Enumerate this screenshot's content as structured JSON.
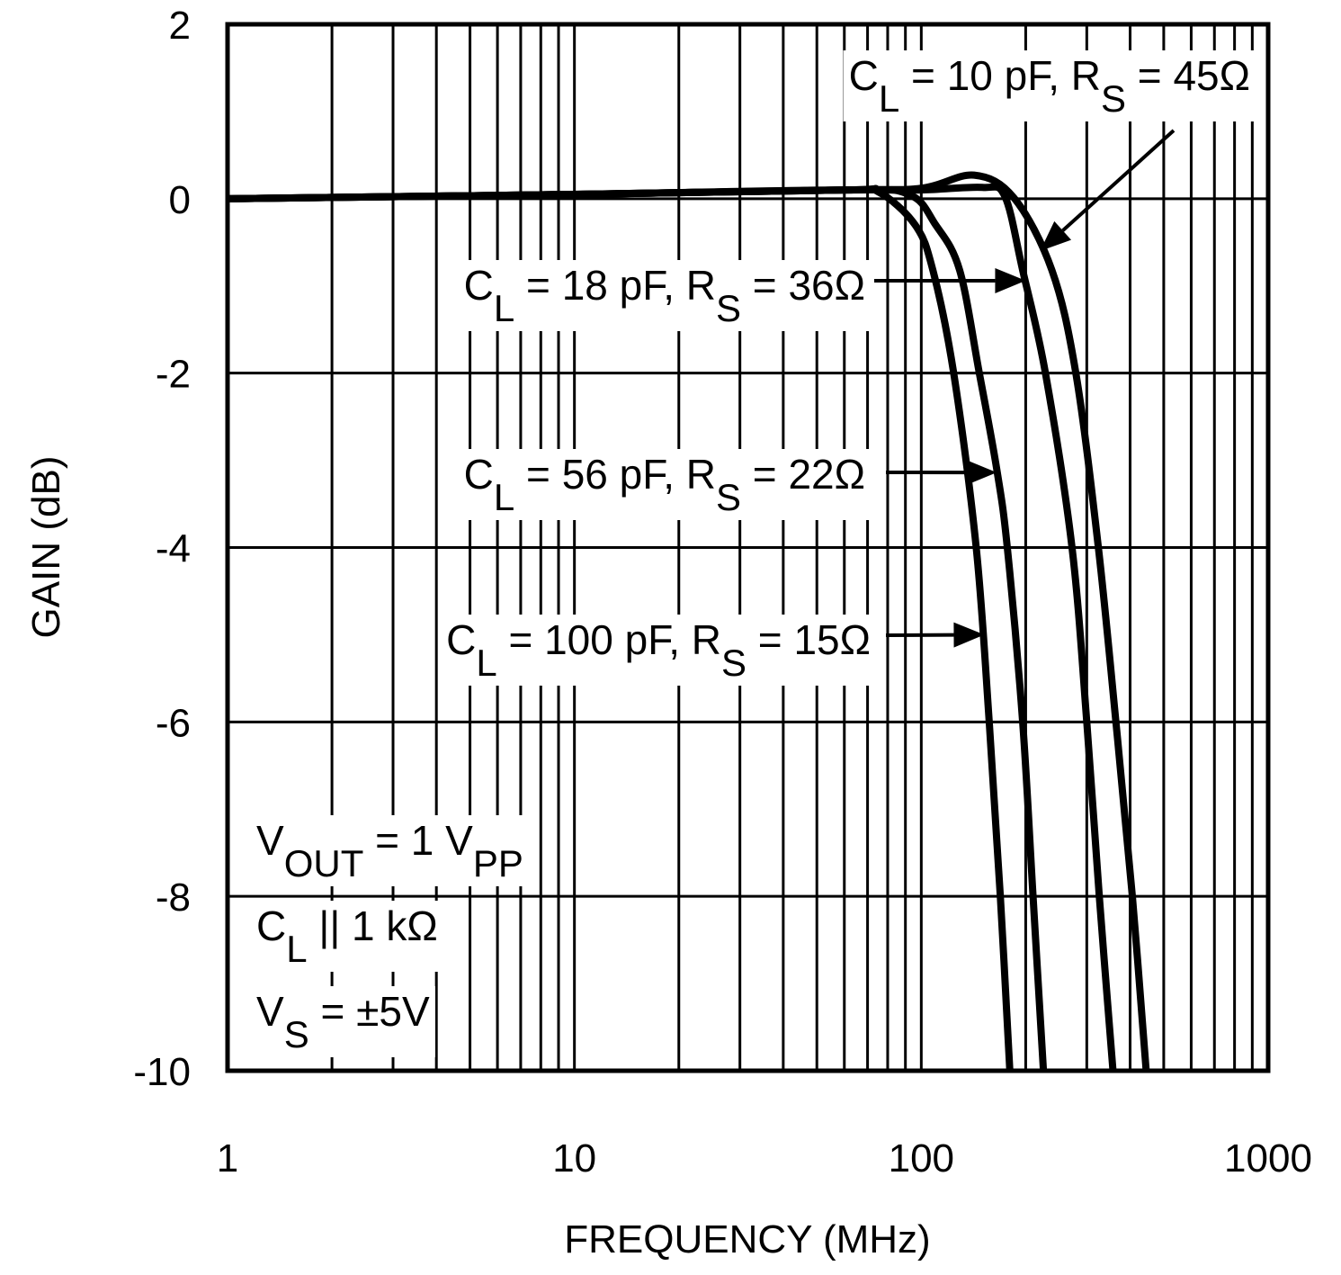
{
  "chart_data": {
    "type": "line",
    "title": "",
    "xlabel": "FREQUENCY (MHz)",
    "ylabel": "GAIN (dB)",
    "xscale": "log",
    "xlim": [
      1,
      1000
    ],
    "ylim": [
      -10,
      2
    ],
    "xticks": [
      1,
      10,
      100,
      1000
    ],
    "xtick_labels": [
      "1",
      "10",
      "100",
      "1000"
    ],
    "yticks": [
      2,
      0,
      -2,
      -4,
      -6,
      -8,
      -10
    ],
    "ytick_labels": [
      "2",
      "0",
      "-2",
      "-4",
      "-6",
      "-8",
      "-10"
    ],
    "grid": true,
    "line_color": "#000000",
    "series": [
      {
        "name": "CL = 100 pF, RS = 15Ω",
        "x": [
          1,
          10,
          60,
          75,
          96,
          108,
          124,
          144,
          157,
          169,
          180
        ],
        "y": [
          0,
          0.05,
          0.1,
          0.08,
          -0.3,
          -0.82,
          -2,
          -4,
          -6,
          -8,
          -10
        ]
      },
      {
        "name": "CL = 56 pF, RS = 22Ω",
        "x": [
          1,
          10,
          60,
          92,
          110,
          129,
          147,
          165,
          177,
          196,
          210,
          225
        ],
        "y": [
          0,
          0.05,
          0.1,
          0.05,
          -0.3,
          -0.82,
          -2,
          -3.1,
          -4,
          -6,
          -8,
          -10
        ]
      },
      {
        "name": "CL = 18 pF, RS = 36Ω",
        "x": [
          1,
          10,
          60,
          100,
          150,
          174,
          196,
          228,
          272,
          300,
          326,
          357
        ],
        "y": [
          0,
          0.05,
          0.1,
          0.1,
          0.13,
          0.03,
          -0.82,
          -2,
          -4,
          -6,
          -8,
          -10
        ]
      },
      {
        "name": "CL = 10 pF, RS = 45Ω",
        "x": [
          1,
          10,
          60,
          100,
          142,
          185,
          238,
          279,
          324,
          364,
          406,
          445
        ],
        "y": [
          0,
          0.05,
          0.1,
          0.12,
          0.27,
          0.01,
          -0.82,
          -2,
          -4,
          -6,
          -8,
          -10
        ]
      }
    ],
    "annotations": [
      {
        "series": 3,
        "parts": [
          {
            "t": "C"
          },
          {
            "sub": "L"
          },
          {
            "t": " = 10 pF, R"
          },
          {
            "sub": "S"
          },
          {
            "t": " = 45Ω"
          }
        ],
        "arrow_to": [
          220,
          -0.6
        ]
      },
      {
        "series": 2,
        "parts": [
          {
            "t": "C"
          },
          {
            "sub": "L"
          },
          {
            "t": " = 18 pF, R"
          },
          {
            "sub": "S"
          },
          {
            "t": " = 36Ω"
          }
        ],
        "arrow_to": [
          200,
          -0.94
        ]
      },
      {
        "series": 1,
        "parts": [
          {
            "t": "C"
          },
          {
            "sub": "L"
          },
          {
            "t": " = 56 pF, R"
          },
          {
            "sub": "S"
          },
          {
            "t": " = 22Ω"
          }
        ],
        "arrow_to": [
          165,
          -3.14
        ]
      },
      {
        "series": 0,
        "parts": [
          {
            "t": "C"
          },
          {
            "sub": "L"
          },
          {
            "t": " = 100 pF, R"
          },
          {
            "sub": "S"
          },
          {
            "t": " = 15Ω"
          }
        ],
        "arrow_to": [
          152,
          -5.0
        ]
      }
    ],
    "conditions": [
      [
        {
          "t": "V"
        },
        {
          "sub": "OUT"
        },
        {
          "t": " = 1 V"
        },
        {
          "sub": "PP"
        }
      ],
      [
        {
          "t": "C"
        },
        {
          "sub": "L"
        },
        {
          "t": " || 1 kΩ"
        }
      ],
      [
        {
          "t": "V"
        },
        {
          "sub": "S"
        },
        {
          "t": " = ±5V"
        }
      ]
    ]
  }
}
